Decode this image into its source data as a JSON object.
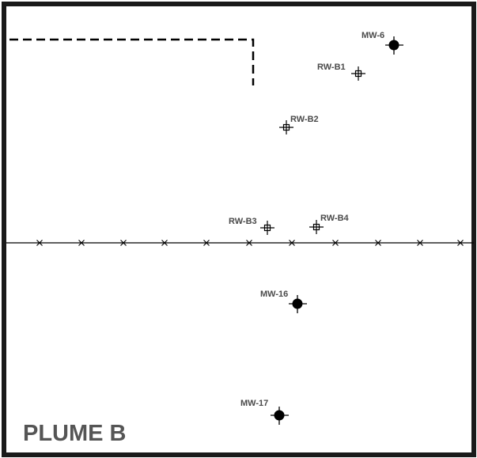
{
  "map": {
    "title": "PLUME B",
    "colors": {
      "frame": "#1a1a1a",
      "symbol": "#000000",
      "label": "#4a4a4a",
      "title": "#555555"
    }
  },
  "wells": {
    "mw6": {
      "label": "MW-6",
      "type": "monitoring-well",
      "icon": "filled-circle-crosshair"
    },
    "rwb1": {
      "label": "RW-B1",
      "type": "recovery-well",
      "icon": "open-square-crosshair"
    },
    "rwb2": {
      "label": "RW-B2",
      "type": "recovery-well",
      "icon": "open-square-crosshair"
    },
    "rwb3": {
      "label": "RW-B3",
      "type": "recovery-well",
      "icon": "open-square-crosshair"
    },
    "rwb4": {
      "label": "RW-B4",
      "type": "recovery-well",
      "icon": "open-square-crosshair"
    },
    "mw16": {
      "label": "MW-16",
      "type": "monitoring-well",
      "icon": "filled-circle-crosshair"
    },
    "mw17": {
      "label": "MW-17",
      "type": "monitoring-well",
      "icon": "filled-circle-crosshair"
    }
  },
  "features": {
    "fence": {
      "type": "fence-line",
      "icon": "x-marker"
    },
    "boundary": {
      "type": "dashed-boundary"
    }
  }
}
